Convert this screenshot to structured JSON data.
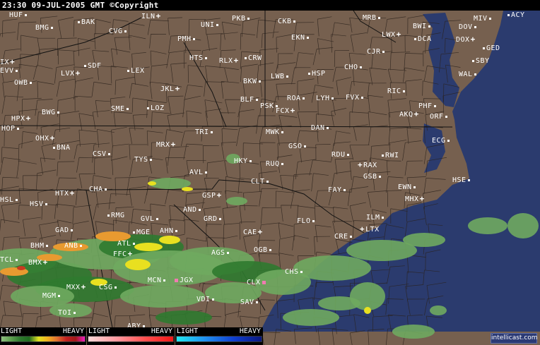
{
  "header": {
    "timestamp": "23:30 09-JUL-2005 GMT",
    "copyright": "©Copyright"
  },
  "colors": {
    "land": "#76604f",
    "ocean": "#2b3b6e",
    "border": "#2a211b",
    "radar_light": "#6faa5f",
    "radar_dark": "#2f7a2f",
    "radar_yellow": "#e8e020",
    "radar_orange": "#e89a30",
    "radar_red": "#c83a20",
    "marker_pink": "#f07ab0"
  },
  "stations": [
    {
      "code": "HUF",
      "marker": "dot"
    },
    {
      "code": "BAK",
      "marker": "dot",
      "prefix": true
    },
    {
      "code": "BMG",
      "marker": "dot"
    },
    {
      "code": "ILN",
      "marker": "plus"
    },
    {
      "code": "CVG",
      "marker": "dot"
    },
    {
      "code": "PKB",
      "marker": "dot"
    },
    {
      "code": "UNI",
      "marker": "dot"
    },
    {
      "code": "PMH",
      "marker": "dot"
    },
    {
      "code": "HTS",
      "marker": "dot"
    },
    {
      "code": "RLX",
      "marker": "plus"
    },
    {
      "code": "CRW",
      "marker": "dot",
      "prefix": true
    },
    {
      "code": "IX",
      "marker": "plus"
    },
    {
      "code": "EVV",
      "marker": "dot"
    },
    {
      "code": "LVX",
      "marker": "plus"
    },
    {
      "code": "SDF",
      "marker": "dot",
      "prefix": true
    },
    {
      "code": "LEX",
      "marker": "dot",
      "prefix": true
    },
    {
      "code": "OWB",
      "marker": "dot"
    },
    {
      "code": "BKW",
      "marker": "dot"
    },
    {
      "code": "JKL",
      "marker": "plus"
    },
    {
      "code": "BLF",
      "marker": "dot"
    },
    {
      "code": "PSK",
      "marker": "dot"
    },
    {
      "code": "BWG",
      "marker": "dot"
    },
    {
      "code": "SME",
      "marker": "dot"
    },
    {
      "code": "LOZ",
      "marker": "dot",
      "prefix": true
    },
    {
      "code": "HPX",
      "marker": "plus"
    },
    {
      "code": "HOP",
      "marker": "dot"
    },
    {
      "code": "TRI",
      "marker": "dot"
    },
    {
      "code": "OHX",
      "marker": "plus"
    },
    {
      "code": "BNA",
      "marker": "dot",
      "prefix": true
    },
    {
      "code": "CSV",
      "marker": "dot"
    },
    {
      "code": "MRX",
      "marker": "plus"
    },
    {
      "code": "TYS",
      "marker": "dot"
    },
    {
      "code": "HKY",
      "marker": "dot"
    },
    {
      "code": "AVL",
      "marker": "dot"
    },
    {
      "code": "CKB",
      "marker": "dot"
    },
    {
      "code": "MRB",
      "marker": "dot"
    },
    {
      "code": "BWI",
      "marker": "dot"
    },
    {
      "code": "LWX",
      "marker": "plus"
    },
    {
      "code": "DCA",
      "marker": "dot",
      "prefix": true
    },
    {
      "code": "MIV",
      "marker": "dot"
    },
    {
      "code": "DOV",
      "marker": "dot"
    },
    {
      "code": "ACY",
      "marker": "dot",
      "prefix": true
    },
    {
      "code": "DOX",
      "marker": "plus"
    },
    {
      "code": "GED",
      "marker": "dot",
      "prefix": true
    },
    {
      "code": "EKN",
      "marker": "dot"
    },
    {
      "code": "CJR",
      "marker": "dot"
    },
    {
      "code": "SBY",
      "marker": "dot",
      "prefix": true
    },
    {
      "code": "CHO",
      "marker": "dot"
    },
    {
      "code": "HSP",
      "marker": "dot",
      "prefix": true
    },
    {
      "code": "LWB",
      "marker": "dot"
    },
    {
      "code": "WAL",
      "marker": "dot"
    },
    {
      "code": "RIC",
      "marker": "dot"
    },
    {
      "code": "ROA",
      "marker": "dot"
    },
    {
      "code": "LYH",
      "marker": "dot"
    },
    {
      "code": "FVX",
      "marker": "dot"
    },
    {
      "code": "FCX",
      "marker": "plus"
    },
    {
      "code": "PHF",
      "marker": "dot"
    },
    {
      "code": "AKQ",
      "marker": "plus"
    },
    {
      "code": "ORF",
      "marker": "dot"
    },
    {
      "code": "DAN",
      "marker": "dot"
    },
    {
      "code": "MWK",
      "marker": "dot"
    },
    {
      "code": "ECG",
      "marker": "dot"
    },
    {
      "code": "GSO",
      "marker": "dot"
    },
    {
      "code": "RDU",
      "marker": "dot"
    },
    {
      "code": "RWI",
      "marker": "dot",
      "prefix": true
    },
    {
      "code": "RAX",
      "marker": "plus",
      "prefix": true
    },
    {
      "code": "RUQ",
      "marker": "dot"
    },
    {
      "code": "CLT",
      "marker": "dot"
    },
    {
      "code": "HTX",
      "marker": "plus"
    },
    {
      "code": "CHA",
      "marker": "dot"
    },
    {
      "code": "HSL",
      "marker": "dot"
    },
    {
      "code": "GSP",
      "marker": "plus"
    },
    {
      "code": "HSV",
      "marker": "dot"
    },
    {
      "code": "AND",
      "marker": "dot"
    },
    {
      "code": "RMG",
      "marker": "dot",
      "prefix": true
    },
    {
      "code": "GVL",
      "marker": "dot"
    },
    {
      "code": "GRD",
      "marker": "dot"
    },
    {
      "code": "GAD",
      "marker": "dot"
    },
    {
      "code": "CAE",
      "marker": "plus"
    },
    {
      "code": "MGE",
      "marker": "dot",
      "prefix": true
    },
    {
      "code": "AHN",
      "marker": "dot"
    },
    {
      "code": "ANB",
      "marker": "dot"
    },
    {
      "code": "BHM",
      "marker": "dot"
    },
    {
      "code": "ATL",
      "marker": "dot"
    },
    {
      "code": "OGB",
      "marker": "dot"
    },
    {
      "code": "FFC",
      "marker": "plus"
    },
    {
      "code": "AGS",
      "marker": "dot"
    },
    {
      "code": "TCL",
      "marker": "dot"
    },
    {
      "code": "BMX",
      "marker": "plus"
    },
    {
      "code": "MCN",
      "marker": "dot"
    },
    {
      "code": "JGX",
      "marker": "pink",
      "prefix": true
    },
    {
      "code": "CLX",
      "marker": "pink"
    },
    {
      "code": "MXX",
      "marker": "plus"
    },
    {
      "code": "CSG",
      "marker": "dot"
    },
    {
      "code": "MGM",
      "marker": "dot"
    },
    {
      "code": "VDI",
      "marker": "dot"
    },
    {
      "code": "SAV",
      "marker": "dot"
    },
    {
      "code": "TOI",
      "marker": "dot"
    },
    {
      "code": "ABY",
      "marker": "dot"
    },
    {
      "code": "GSB",
      "marker": "dot"
    },
    {
      "code": "HSE",
      "marker": "dot"
    },
    {
      "code": "FAY",
      "marker": "dot"
    },
    {
      "code": "EWN",
      "marker": "dot"
    },
    {
      "code": "MHX",
      "marker": "plus"
    },
    {
      "code": "FLO",
      "marker": "dot"
    },
    {
      "code": "ILM",
      "marker": "dot"
    },
    {
      "code": "LTX",
      "marker": "plus",
      "prefix": true
    },
    {
      "code": "CRE",
      "marker": "dot"
    },
    {
      "code": "CHS",
      "marker": "dot"
    }
  ],
  "legend": [
    {
      "type": "rain",
      "light": "LIGHT",
      "heavy": "HEAVY",
      "gradient": [
        "#8fc07f",
        "#5fa050",
        "#2f7a2f",
        "#1f6a1f",
        "#e0e020",
        "#f0b020",
        "#e07030",
        "#c02020",
        "#a01818",
        "#f020c0"
      ]
    },
    {
      "type": "mix",
      "light": "LIGHT",
      "heavy": "HEAVY",
      "gradient": [
        "#ffd8d8",
        "#ff9aa0",
        "#ff5050",
        "#f01818"
      ]
    },
    {
      "type": "snow",
      "light": "LIGHT",
      "heavy": "HEAVY",
      "gradient": [
        "#20e8f0",
        "#2090f0",
        "#1040d0",
        "#0a1880"
      ]
    }
  ],
  "logo": "intellicast.com"
}
